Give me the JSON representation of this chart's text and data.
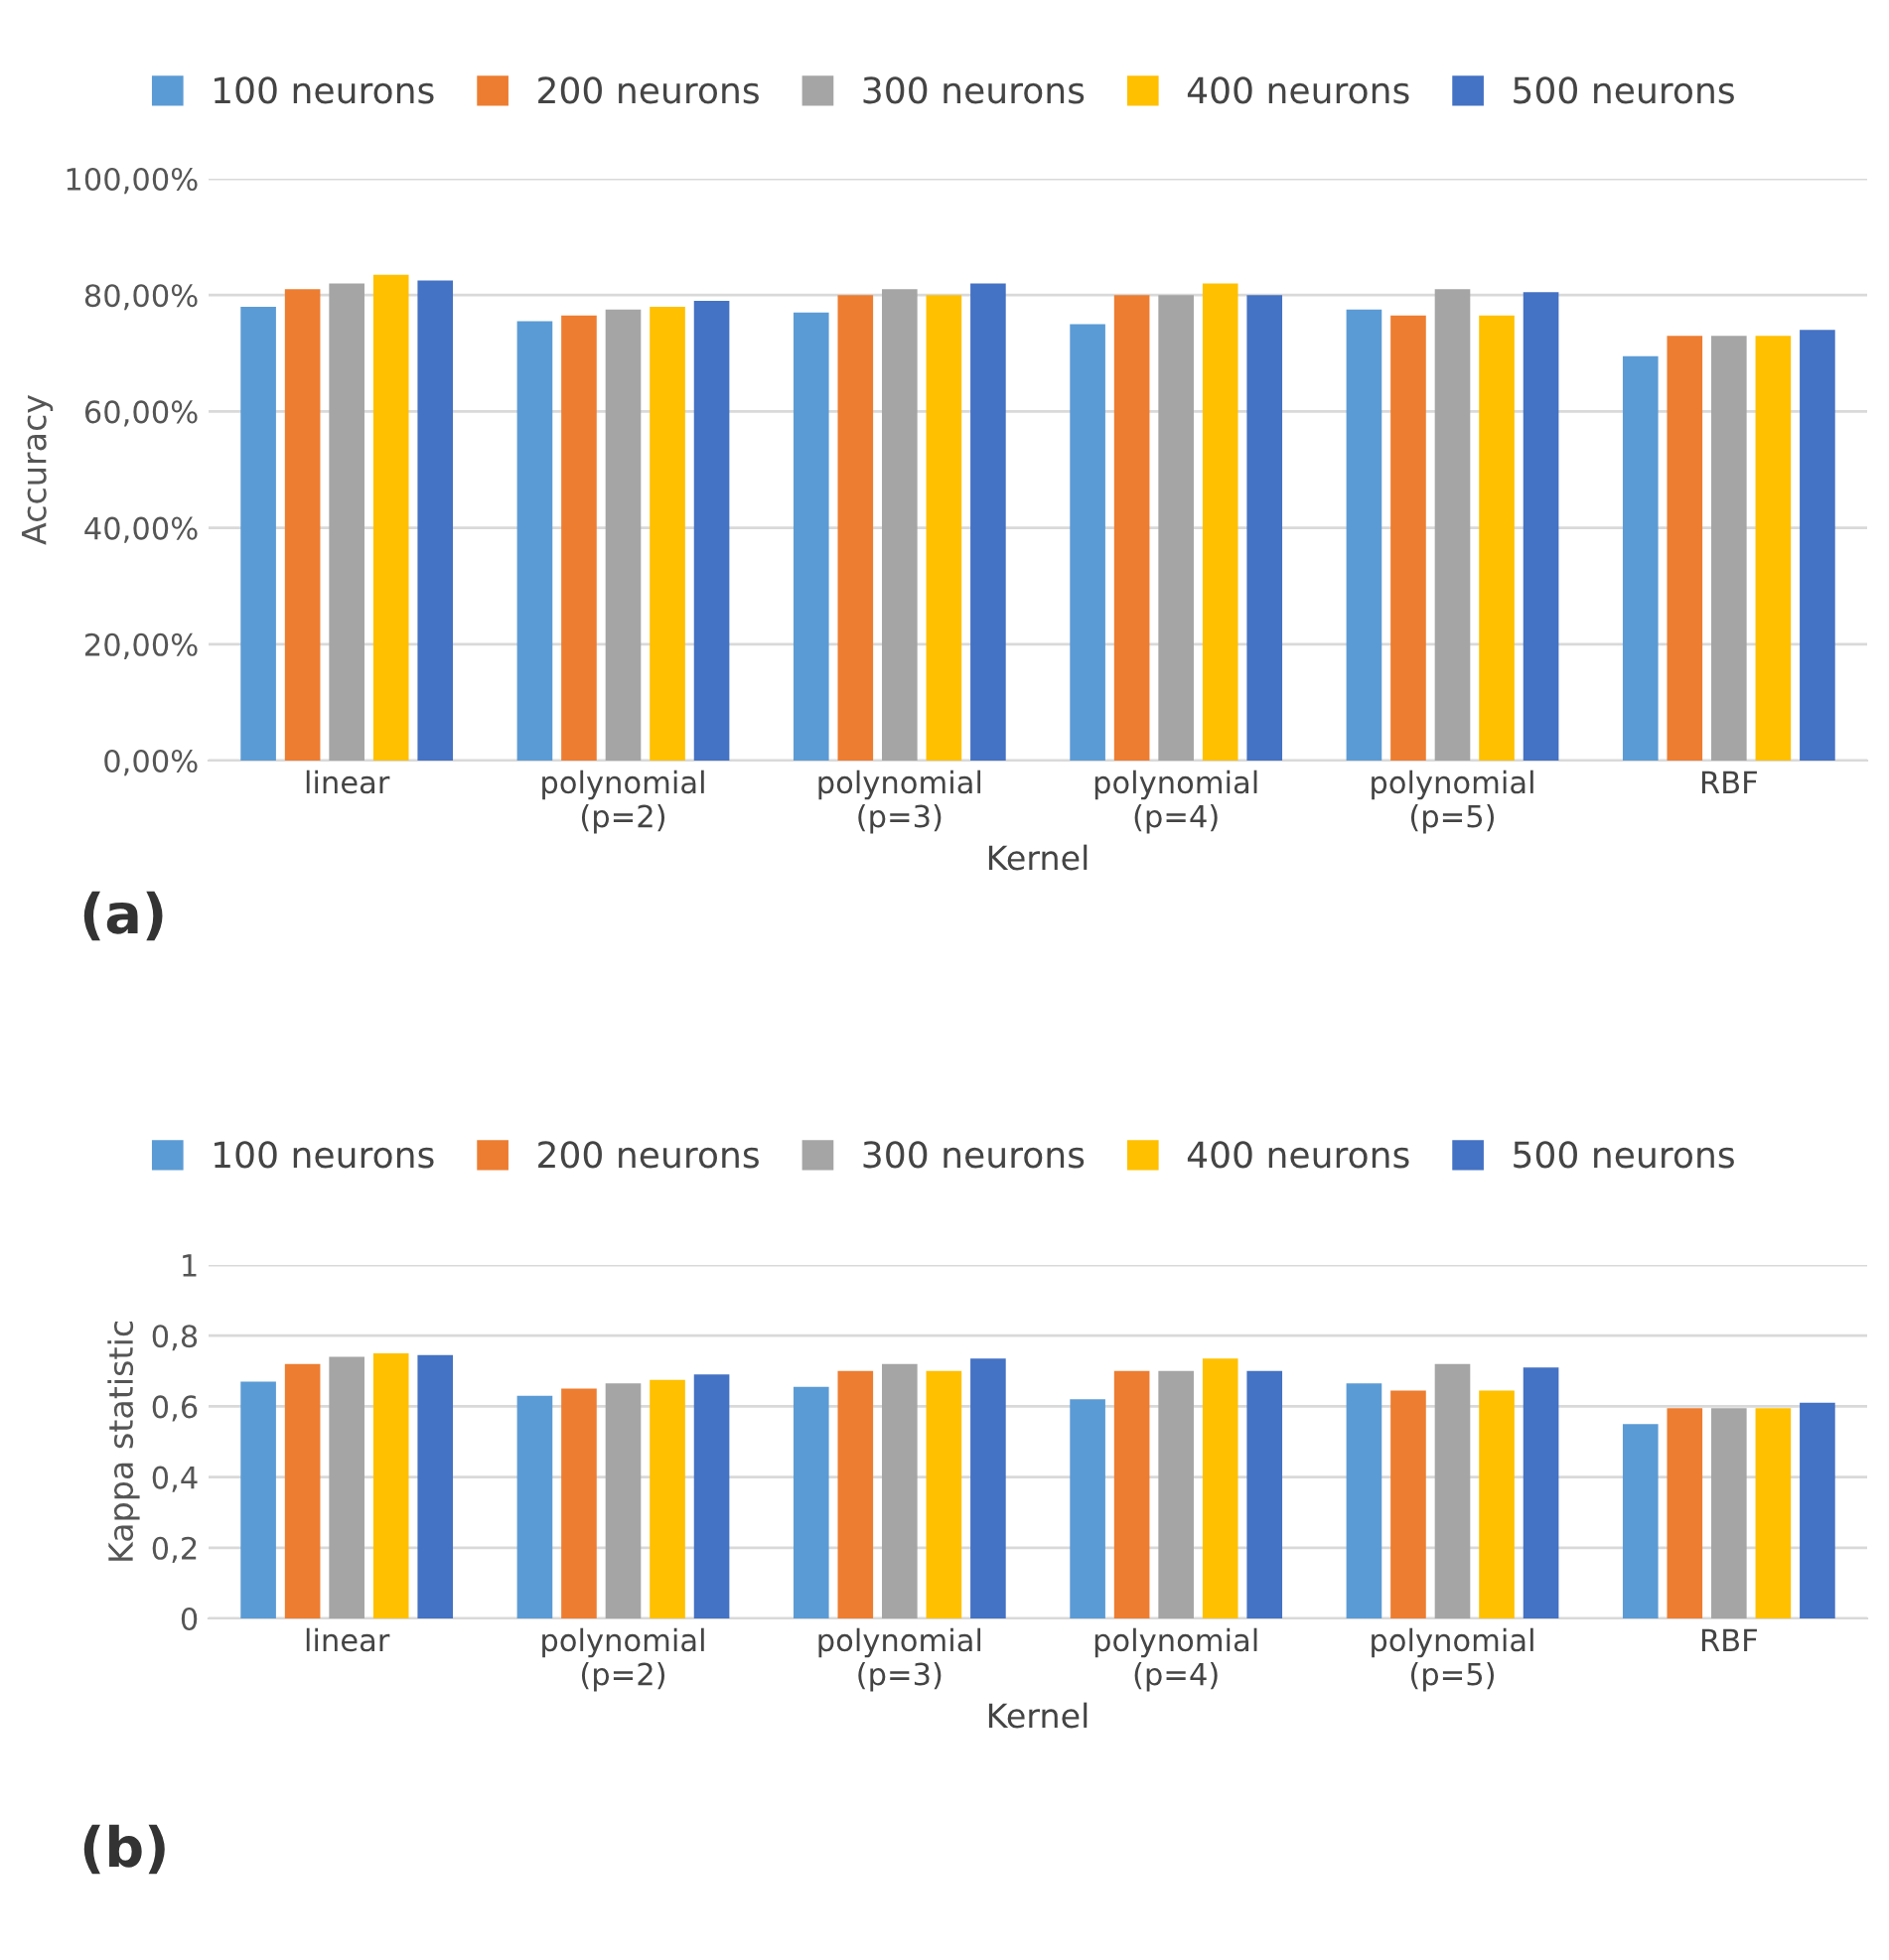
{
  "chart_data": [
    {
      "type": "bar",
      "xlabel": "Kernel",
      "ylabel": "Accuracy",
      "annotations": [
        "(a)"
      ],
      "categories": [
        "linear",
        "polynomial\n(p=2)",
        "polynomial\n(p=3)",
        "polynomial\n(p=4)",
        "polynomial\n(p=5)",
        "RBF"
      ],
      "series": [
        {
          "name": "100 neurons",
          "color": "#5b9bd5",
          "values": [
            78,
            75.5,
            77,
            75,
            77.5,
            69.5
          ]
        },
        {
          "name": "200 neurons",
          "color": "#ed7d31",
          "values": [
            81,
            76.5,
            80,
            80,
            76.5,
            73
          ]
        },
        {
          "name": "300 neurons",
          "color": "#a5a5a5",
          "values": [
            82,
            77.5,
            81,
            80,
            81,
            73
          ]
        },
        {
          "name": "400 neurons",
          "color": "#ffc000",
          "values": [
            83.5,
            78,
            80,
            82,
            76.5,
            73
          ]
        },
        {
          "name": "500 neurons",
          "color": "#4472c4",
          "values": [
            82.5,
            79,
            82,
            80,
            80.5,
            74
          ]
        }
      ],
      "ylim": [
        0,
        100
      ],
      "yticks": [
        {
          "value": 0,
          "label": "0,00%"
        },
        {
          "value": 20,
          "label": "20,00%"
        },
        {
          "value": 40,
          "label": "40,00%"
        },
        {
          "value": 60,
          "label": "60,00%"
        },
        {
          "value": 80,
          "label": "80,00%"
        },
        {
          "value": 100,
          "label": "100,00%"
        }
      ],
      "grid": "y",
      "legend": "top"
    },
    {
      "type": "bar",
      "xlabel": "Kernel",
      "ylabel": "Kappa statistic",
      "annotations": [
        "(b)"
      ],
      "categories": [
        "linear",
        "polynomial\n(p=2)",
        "polynomial\n(p=3)",
        "polynomial\n(p=4)",
        "polynomial\n(p=5)",
        "RBF"
      ],
      "series": [
        {
          "name": "100 neurons",
          "color": "#5b9bd5",
          "values": [
            0.67,
            0.63,
            0.655,
            0.62,
            0.665,
            0.55
          ]
        },
        {
          "name": "200 neurons",
          "color": "#ed7d31",
          "values": [
            0.72,
            0.65,
            0.7,
            0.7,
            0.645,
            0.595
          ]
        },
        {
          "name": "300 neurons",
          "color": "#a5a5a5",
          "values": [
            0.74,
            0.665,
            0.72,
            0.7,
            0.72,
            0.595
          ]
        },
        {
          "name": "400 neurons",
          "color": "#ffc000",
          "values": [
            0.75,
            0.675,
            0.7,
            0.735,
            0.645,
            0.595
          ]
        },
        {
          "name": "500 neurons",
          "color": "#4472c4",
          "values": [
            0.745,
            0.69,
            0.735,
            0.7,
            0.71,
            0.61
          ]
        }
      ],
      "ylim": [
        0,
        1
      ],
      "yticks": [
        0,
        {
          "value": 0.2,
          "label": "0,2"
        },
        {
          "value": 0.4,
          "label": "0,4"
        },
        {
          "value": 0.6,
          "label": "0,6"
        },
        {
          "value": 0.8,
          "label": "0,8"
        },
        1
      ],
      "grid": "y",
      "legend": "top"
    }
  ]
}
